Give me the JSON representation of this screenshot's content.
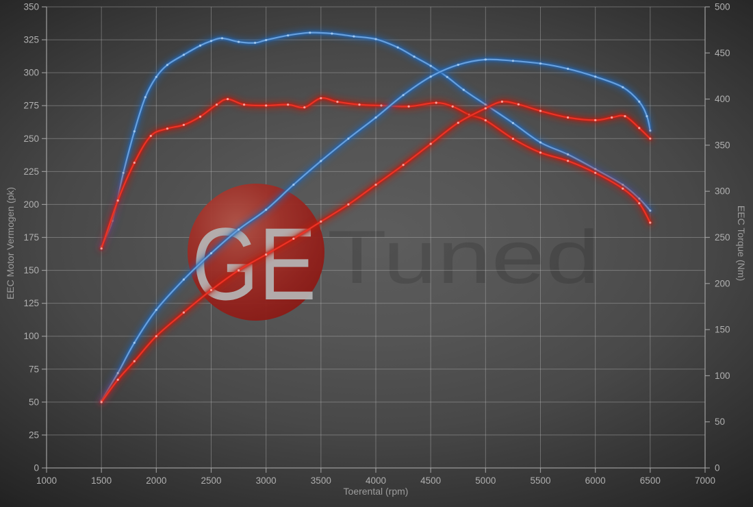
{
  "chart": {
    "x_axis": {
      "label": "Toerental (rpm)",
      "min": 1000,
      "max": 7000,
      "tick_step": 500,
      "tick_labels": [
        "1000",
        "1500",
        "2000",
        "2500",
        "3000",
        "3500",
        "4000",
        "4500",
        "5000",
        "5500",
        "6000",
        "6500",
        "7000"
      ]
    },
    "left_axis": {
      "label": "EEC Motor Vermogen (pk)",
      "min": 0,
      "max": 350,
      "tick_step": 25,
      "tick_labels": [
        "0",
        "25",
        "50",
        "75",
        "100",
        "125",
        "150",
        "175",
        "200",
        "225",
        "250",
        "275",
        "300",
        "325",
        "350"
      ]
    },
    "right_axis": {
      "label": "EEC Torque (Nm)",
      "min": 0,
      "max": 500,
      "tick_step": 50,
      "tick_labels": [
        "0",
        "50",
        "100",
        "150",
        "200",
        "250",
        "300",
        "350",
        "400",
        "450",
        "500"
      ]
    },
    "grid": {
      "vertical_every_rpm": 500,
      "horizontal_every_pk": 25,
      "line_color": "#c3c3c3"
    },
    "watermark": {
      "badge_text": "GE",
      "word": "Tuned",
      "badge_color": "#9c2420",
      "badge_highlight": "#b25347",
      "badge_letter_color": "#b6b6b6"
    },
    "chart_data": {
      "type": "line",
      "xlabel": "Toerental (rpm)",
      "x_range": [
        1000,
        7000
      ],
      "left_ylabel": "EEC Motor Vermogen (pk)",
      "left_ylim": [
        0,
        350
      ],
      "right_ylabel": "EEC Torque (Nm)",
      "right_ylim": [
        0,
        500
      ],
      "legend": "none",
      "series": [
        {
          "name": "tuned_torque",
          "axis": "right",
          "unit": "Nm",
          "color_core": "#6ba3e0",
          "color_glow": "#2466b4",
          "color_dot": "#a9cdf0",
          "points": [
            [
              1500,
              240
            ],
            [
              1600,
              268
            ],
            [
              1700,
              320
            ],
            [
              1800,
              365
            ],
            [
              1900,
              402
            ],
            [
              2000,
              424
            ],
            [
              2100,
              437
            ],
            [
              2250,
              448
            ],
            [
              2400,
              458
            ],
            [
              2500,
              463
            ],
            [
              2600,
              466
            ],
            [
              2750,
              462
            ],
            [
              2900,
              461
            ],
            [
              3000,
              464
            ],
            [
              3200,
              469
            ],
            [
              3400,
              472
            ],
            [
              3600,
              471
            ],
            [
              3800,
              468
            ],
            [
              4000,
              465
            ],
            [
              4200,
              456
            ],
            [
              4350,
              446
            ],
            [
              4500,
              436
            ],
            [
              4650,
              424
            ],
            [
              4800,
              410
            ],
            [
              5000,
              394
            ],
            [
              5250,
              374
            ],
            [
              5500,
              353
            ],
            [
              5750,
              340
            ],
            [
              6000,
              324
            ],
            [
              6250,
              307
            ],
            [
              6400,
              292
            ],
            [
              6500,
              279
            ]
          ]
        },
        {
          "name": "stock_torque",
          "axis": "right",
          "unit": "Nm",
          "color_core": "#ef3526",
          "color_glow": "#c01a10",
          "color_dot": "#ffb3ad",
          "points": [
            [
              1500,
              238
            ],
            [
              1650,
              290
            ],
            [
              1800,
              331
            ],
            [
              1950,
              360
            ],
            [
              2100,
              368
            ],
            [
              2250,
              372
            ],
            [
              2400,
              381
            ],
            [
              2550,
              394
            ],
            [
              2650,
              400
            ],
            [
              2800,
              394
            ],
            [
              3000,
              393
            ],
            [
              3200,
              394
            ],
            [
              3350,
              391
            ],
            [
              3500,
              401
            ],
            [
              3650,
              397
            ],
            [
              3850,
              394
            ],
            [
              4050,
              393
            ],
            [
              4300,
              392
            ],
            [
              4550,
              396
            ],
            [
              4700,
              392
            ],
            [
              4850,
              383
            ],
            [
              5000,
              377
            ],
            [
              5250,
              357
            ],
            [
              5500,
              342
            ],
            [
              5750,
              333
            ],
            [
              6000,
              320
            ],
            [
              6250,
              303
            ],
            [
              6400,
              287
            ],
            [
              6500,
              266
            ]
          ]
        },
        {
          "name": "tuned_power",
          "axis": "left",
          "unit": "pk",
          "color_core": "#6ba3e0",
          "color_glow": "#2466b4",
          "color_dot": "#a9cdf0",
          "points": [
            [
              1500,
              51
            ],
            [
              1650,
              72
            ],
            [
              1800,
              95
            ],
            [
              2000,
              120
            ],
            [
              2250,
              143
            ],
            [
              2500,
              163
            ],
            [
              2750,
              181
            ],
            [
              3000,
              196
            ],
            [
              3250,
              215
            ],
            [
              3500,
              233
            ],
            [
              3750,
              250
            ],
            [
              4000,
              266
            ],
            [
              4250,
              283
            ],
            [
              4500,
              297
            ],
            [
              4750,
              306
            ],
            [
              5000,
              310
            ],
            [
              5250,
              309
            ],
            [
              5500,
              307
            ],
            [
              5750,
              303
            ],
            [
              6000,
              297
            ],
            [
              6250,
              289
            ],
            [
              6400,
              278
            ],
            [
              6470,
              267
            ],
            [
              6500,
              256
            ]
          ]
        },
        {
          "name": "stock_power",
          "axis": "left",
          "unit": "pk",
          "color_core": "#ef3526",
          "color_glow": "#c01a10",
          "color_dot": "#ffb3ad",
          "points": [
            [
              1500,
              50
            ],
            [
              1650,
              67
            ],
            [
              1800,
              81
            ],
            [
              2000,
              100
            ],
            [
              2250,
              118
            ],
            [
              2500,
              135
            ],
            [
              2750,
              150
            ],
            [
              3000,
              162
            ],
            [
              3250,
              174
            ],
            [
              3500,
              187
            ],
            [
              3750,
              200
            ],
            [
              4000,
              215
            ],
            [
              4250,
              230
            ],
            [
              4500,
              246
            ],
            [
              4750,
              262
            ],
            [
              5000,
              273
            ],
            [
              5150,
              278
            ],
            [
              5300,
              276
            ],
            [
              5500,
              271
            ],
            [
              5750,
              266
            ],
            [
              6000,
              264
            ],
            [
              6150,
              266
            ],
            [
              6270,
              267
            ],
            [
              6400,
              258
            ],
            [
              6500,
              250
            ]
          ]
        }
      ]
    }
  }
}
